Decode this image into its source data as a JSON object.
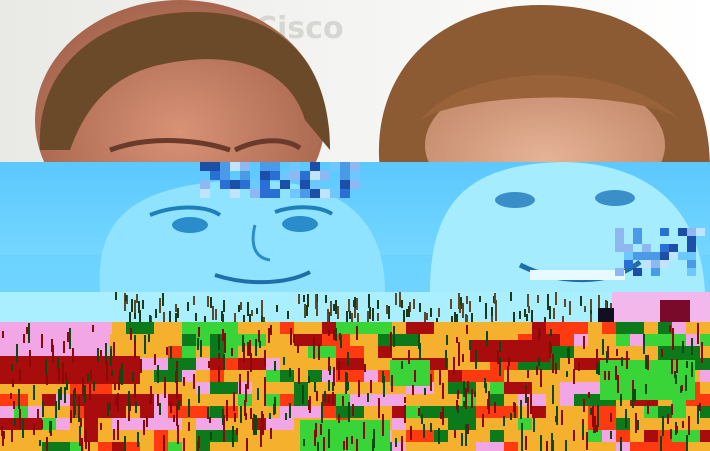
{
  "image": {
    "kind": "corrupted-photograph",
    "bands": [
      "photo-top",
      "cyan-tint-band",
      "pale-cyan-glitch-band",
      "multicolor-glitch-band"
    ],
    "palette": {
      "background": "#f1f1ef",
      "hair_left": "#6b4a2a",
      "hair_right": "#8c5a33",
      "skin_left": "#c8836a",
      "skin_right": "#d9a184",
      "cyan_band": "#5fd0ff",
      "cyan_face": "#8fe3ff",
      "cyan_dark": "#1f7fb8",
      "pale_cyan": "#a9efff",
      "orange": "#f5b02e",
      "dark_red": "#a80c0c",
      "green": "#39d437",
      "dark_green": "#0c7a1a",
      "pink": "#f2a6e6",
      "red": "#ff3a10"
    }
  }
}
